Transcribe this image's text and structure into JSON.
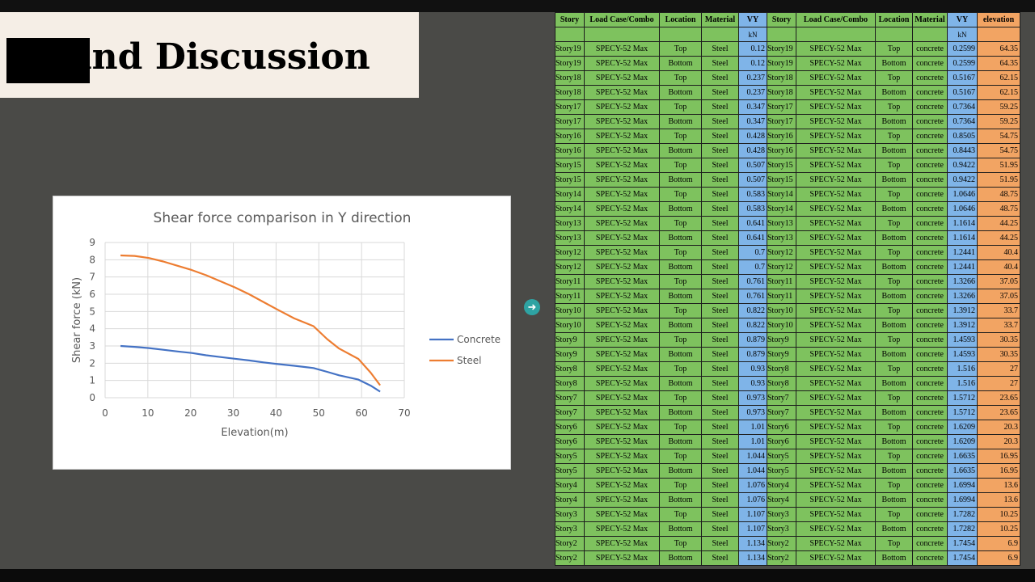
{
  "slide": {
    "title": "lts and Discussion"
  },
  "chart_data": {
    "type": "line",
    "title": "Shear force comparison in Y direction",
    "xlabel": "Elevation(m)",
    "ylabel": "Shear force (kN)",
    "xlim": [
      0,
      70
    ],
    "ylim": [
      0,
      9
    ],
    "xticks": [
      "0",
      "10",
      "20",
      "30",
      "40",
      "50",
      "60",
      "70"
    ],
    "yticks": [
      "0",
      "1",
      "2",
      "3",
      "4",
      "5",
      "6",
      "7",
      "8",
      "9"
    ],
    "grid": true,
    "legend": "right",
    "series": [
      {
        "name": "Concrete",
        "color": "#4472c4",
        "x": [
          3.6,
          6.9,
          10.25,
          13.6,
          16.95,
          20.3,
          23.65,
          27,
          30.35,
          33.7,
          37.05,
          40.4,
          44.25,
          48.75,
          51.95,
          54.75,
          59.25,
          62.15,
          64.35
        ],
        "y": [
          3.0,
          2.95,
          2.88,
          2.78,
          2.68,
          2.59,
          2.46,
          2.36,
          2.26,
          2.16,
          2.05,
          1.95,
          1.85,
          1.72,
          1.5,
          1.3,
          1.05,
          0.7,
          0.35
        ]
      },
      {
        "name": "Steel",
        "color": "#ed7d31",
        "x": [
          3.6,
          6.9,
          10.25,
          13.6,
          16.95,
          20.3,
          23.65,
          27,
          30.35,
          33.7,
          37.05,
          40.4,
          44.25,
          48.75,
          51.95,
          54.75,
          59.25,
          62.15,
          64.35
        ],
        "y": [
          8.25,
          8.22,
          8.1,
          7.9,
          7.65,
          7.4,
          7.1,
          6.75,
          6.4,
          6.0,
          5.55,
          5.1,
          4.6,
          4.15,
          3.4,
          2.85,
          2.25,
          1.45,
          0.72
        ]
      }
    ]
  },
  "table": {
    "headers": [
      "Story",
      "Load Case/Combo",
      "Location",
      "Material",
      "VY",
      "Story",
      "Load Case/Combo",
      "Location",
      "Material",
      "VY",
      "elevation"
    ],
    "units": [
      "",
      "",
      "",
      "",
      "kN",
      "",
      "",
      "",
      "",
      "kN",
      ""
    ],
    "rows": [
      [
        "Story19",
        "SPECY-52 Max",
        "Top",
        "Steel",
        "0.12",
        "Story19",
        "SPECY-52 Max",
        "Top",
        "concrete",
        "0.2599",
        "64.35"
      ],
      [
        "Story19",
        "SPECY-52 Max",
        "Bottom",
        "Steel",
        "0.12",
        "Story19",
        "SPECY-52 Max",
        "Bottom",
        "concrete",
        "0.2599",
        "64.35"
      ],
      [
        "Story18",
        "SPECY-52 Max",
        "Top",
        "Steel",
        "0.237",
        "Story18",
        "SPECY-52 Max",
        "Top",
        "concrete",
        "0.5167",
        "62.15"
      ],
      [
        "Story18",
        "SPECY-52 Max",
        "Bottom",
        "Steel",
        "0.237",
        "Story18",
        "SPECY-52 Max",
        "Bottom",
        "concrete",
        "0.5167",
        "62.15"
      ],
      [
        "Story17",
        "SPECY-52 Max",
        "Top",
        "Steel",
        "0.347",
        "Story17",
        "SPECY-52 Max",
        "Top",
        "concrete",
        "0.7364",
        "59.25"
      ],
      [
        "Story17",
        "SPECY-52 Max",
        "Bottom",
        "Steel",
        "0.347",
        "Story17",
        "SPECY-52 Max",
        "Bottom",
        "concrete",
        "0.7364",
        "59.25"
      ],
      [
        "Story16",
        "SPECY-52 Max",
        "Top",
        "Steel",
        "0.428",
        "Story16",
        "SPECY-52 Max",
        "Top",
        "concrete",
        "0.8505",
        "54.75"
      ],
      [
        "Story16",
        "SPECY-52 Max",
        "Bottom",
        "Steel",
        "0.428",
        "Story16",
        "SPECY-52 Max",
        "Bottom",
        "concrete",
        "0.8443",
        "54.75"
      ],
      [
        "Story15",
        "SPECY-52 Max",
        "Top",
        "Steel",
        "0.507",
        "Story15",
        "SPECY-52 Max",
        "Top",
        "concrete",
        "0.9422",
        "51.95"
      ],
      [
        "Story15",
        "SPECY-52 Max",
        "Bottom",
        "Steel",
        "0.507",
        "Story15",
        "SPECY-52 Max",
        "Bottom",
        "concrete",
        "0.9422",
        "51.95"
      ],
      [
        "Story14",
        "SPECY-52 Max",
        "Top",
        "Steel",
        "0.583",
        "Story14",
        "SPECY-52 Max",
        "Top",
        "concrete",
        "1.0646",
        "48.75"
      ],
      [
        "Story14",
        "SPECY-52 Max",
        "Bottom",
        "Steel",
        "0.583",
        "Story14",
        "SPECY-52 Max",
        "Bottom",
        "concrete",
        "1.0646",
        "48.75"
      ],
      [
        "Story13",
        "SPECY-52 Max",
        "Top",
        "Steel",
        "0.641",
        "Story13",
        "SPECY-52 Max",
        "Top",
        "concrete",
        "1.1614",
        "44.25"
      ],
      [
        "Story13",
        "SPECY-52 Max",
        "Bottom",
        "Steel",
        "0.641",
        "Story13",
        "SPECY-52 Max",
        "Bottom",
        "concrete",
        "1.1614",
        "44.25"
      ],
      [
        "Story12",
        "SPECY-52 Max",
        "Top",
        "Steel",
        "0.7",
        "Story12",
        "SPECY-52 Max",
        "Top",
        "concrete",
        "1.2441",
        "40.4"
      ],
      [
        "Story12",
        "SPECY-52 Max",
        "Bottom",
        "Steel",
        "0.7",
        "Story12",
        "SPECY-52 Max",
        "Bottom",
        "concrete",
        "1.2441",
        "40.4"
      ],
      [
        "Story11",
        "SPECY-52 Max",
        "Top",
        "Steel",
        "0.761",
        "Story11",
        "SPECY-52 Max",
        "Top",
        "concrete",
        "1.3266",
        "37.05"
      ],
      [
        "Story11",
        "SPECY-52 Max",
        "Bottom",
        "Steel",
        "0.761",
        "Story11",
        "SPECY-52 Max",
        "Bottom",
        "concrete",
        "1.3266",
        "37.05"
      ],
      [
        "Story10",
        "SPECY-52 Max",
        "Top",
        "Steel",
        "0.822",
        "Story10",
        "SPECY-52 Max",
        "Top",
        "concrete",
        "1.3912",
        "33.7"
      ],
      [
        "Story10",
        "SPECY-52 Max",
        "Bottom",
        "Steel",
        "0.822",
        "Story10",
        "SPECY-52 Max",
        "Bottom",
        "concrete",
        "1.3912",
        "33.7"
      ],
      [
        "Story9",
        "SPECY-52 Max",
        "Top",
        "Steel",
        "0.879",
        "Story9",
        "SPECY-52 Max",
        "Top",
        "concrete",
        "1.4593",
        "30.35"
      ],
      [
        "Story9",
        "SPECY-52 Max",
        "Bottom",
        "Steel",
        "0.879",
        "Story9",
        "SPECY-52 Max",
        "Bottom",
        "concrete",
        "1.4593",
        "30.35"
      ],
      [
        "Story8",
        "SPECY-52 Max",
        "Top",
        "Steel",
        "0.93",
        "Story8",
        "SPECY-52 Max",
        "Top",
        "concrete",
        "1.516",
        "27"
      ],
      [
        "Story8",
        "SPECY-52 Max",
        "Bottom",
        "Steel",
        "0.93",
        "Story8",
        "SPECY-52 Max",
        "Bottom",
        "concrete",
        "1.516",
        "27"
      ],
      [
        "Story7",
        "SPECY-52 Max",
        "Top",
        "Steel",
        "0.973",
        "Story7",
        "SPECY-52 Max",
        "Top",
        "concrete",
        "1.5712",
        "23.65"
      ],
      [
        "Story7",
        "SPECY-52 Max",
        "Bottom",
        "Steel",
        "0.973",
        "Story7",
        "SPECY-52 Max",
        "Bottom",
        "concrete",
        "1.5712",
        "23.65"
      ],
      [
        "Story6",
        "SPECY-52 Max",
        "Top",
        "Steel",
        "1.01",
        "Story6",
        "SPECY-52 Max",
        "Top",
        "concrete",
        "1.6209",
        "20.3"
      ],
      [
        "Story6",
        "SPECY-52 Max",
        "Bottom",
        "Steel",
        "1.01",
        "Story6",
        "SPECY-52 Max",
        "Bottom",
        "concrete",
        "1.6209",
        "20.3"
      ],
      [
        "Story5",
        "SPECY-52 Max",
        "Top",
        "Steel",
        "1.044",
        "Story5",
        "SPECY-52 Max",
        "Top",
        "concrete",
        "1.6635",
        "16.95"
      ],
      [
        "Story5",
        "SPECY-52 Max",
        "Bottom",
        "Steel",
        "1.044",
        "Story5",
        "SPECY-52 Max",
        "Bottom",
        "concrete",
        "1.6635",
        "16.95"
      ],
      [
        "Story4",
        "SPECY-52 Max",
        "Top",
        "Steel",
        "1.076",
        "Story4",
        "SPECY-52 Max",
        "Top",
        "concrete",
        "1.6994",
        "13.6"
      ],
      [
        "Story4",
        "SPECY-52 Max",
        "Bottom",
        "Steel",
        "1.076",
        "Story4",
        "SPECY-52 Max",
        "Bottom",
        "concrete",
        "1.6994",
        "13.6"
      ],
      [
        "Story3",
        "SPECY-52 Max",
        "Top",
        "Steel",
        "1.107",
        "Story3",
        "SPECY-52 Max",
        "Top",
        "concrete",
        "1.7282",
        "10.25"
      ],
      [
        "Story3",
        "SPECY-52 Max",
        "Bottom",
        "Steel",
        "1.107",
        "Story3",
        "SPECY-52 Max",
        "Bottom",
        "concrete",
        "1.7282",
        "10.25"
      ],
      [
        "Story2",
        "SPECY-52 Max",
        "Top",
        "Steel",
        "1.134",
        "Story2",
        "SPECY-52 Max",
        "Top",
        "concrete",
        "1.7454",
        "6.9"
      ],
      [
        "Story2",
        "SPECY-52 Max",
        "Bottom",
        "Steel",
        "1.134",
        "Story2",
        "SPECY-52 Max",
        "Bottom",
        "concrete",
        "1.7454",
        "6.9"
      ]
    ]
  },
  "colors": {
    "background": "#4a4a47",
    "title_box": "#f5eee6",
    "table_green": "#7ec25e",
    "table_blue": "#7fb4e8",
    "table_orange": "#f2a463",
    "nav_button": "#2ea3a3"
  },
  "icons": {
    "nav": "arrow-right-circle-icon"
  }
}
